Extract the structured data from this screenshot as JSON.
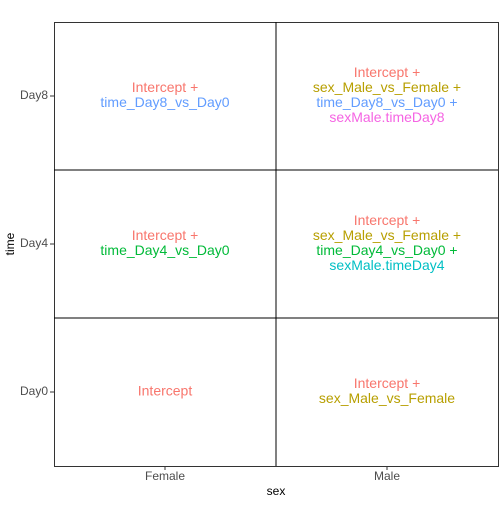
{
  "chart_data": {
    "type": "text-grid",
    "x_label": "sex",
    "y_label": "time",
    "x_categories": [
      "Female",
      "Male"
    ],
    "y_categories": [
      "Day0",
      "Day4",
      "Day8"
    ],
    "cells": [
      {
        "x": "Female",
        "y": "Day0",
        "lines": [
          {
            "text": "Intercept",
            "color": "#F8766D"
          }
        ]
      },
      {
        "x": "Male",
        "y": "Day0",
        "lines": [
          {
            "text": "Intercept +",
            "color": "#F8766D"
          },
          {
            "text": "sex_Male_vs_Female",
            "color": "#B79F00"
          }
        ]
      },
      {
        "x": "Female",
        "y": "Day4",
        "lines": [
          {
            "text": "Intercept +",
            "color": "#F8766D"
          },
          {
            "text": "time_Day4_vs_Day0",
            "color": "#00BA38"
          }
        ]
      },
      {
        "x": "Male",
        "y": "Day4",
        "lines": [
          {
            "text": "Intercept +",
            "color": "#F8766D"
          },
          {
            "text": "sex_Male_vs_Female +",
            "color": "#B79F00"
          },
          {
            "text": "time_Day4_vs_Day0 +",
            "color": "#00BA38"
          },
          {
            "text": "sexMale.timeDay4",
            "color": "#00BFC4"
          }
        ]
      },
      {
        "x": "Female",
        "y": "Day8",
        "lines": [
          {
            "text": "Intercept +",
            "color": "#F8766D"
          },
          {
            "text": "time_Day8_vs_Day0",
            "color": "#619CFF"
          }
        ]
      },
      {
        "x": "Male",
        "y": "Day8",
        "lines": [
          {
            "text": "Intercept +",
            "color": "#F8766D"
          },
          {
            "text": "sex_Male_vs_Female +",
            "color": "#B79F00"
          },
          {
            "text": "time_Day8_vs_Day0 +",
            "color": "#619CFF"
          },
          {
            "text": "sexMale.timeDay8",
            "color": "#F564E3"
          }
        ]
      }
    ]
  }
}
